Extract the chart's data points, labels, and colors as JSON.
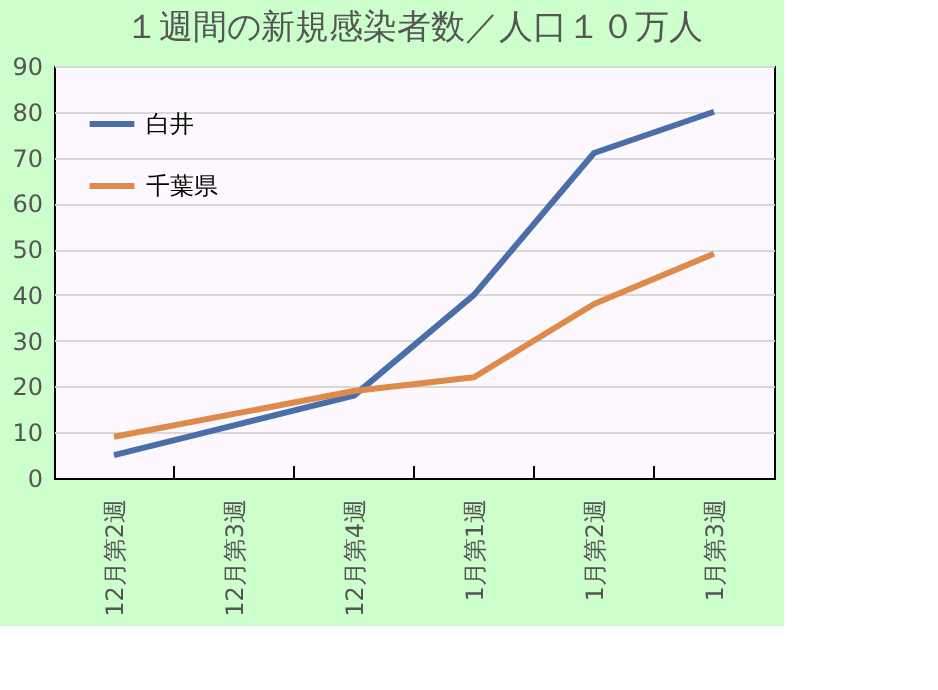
{
  "chart_data": {
    "type": "line",
    "title": "１週間の新規感染者数／人口１０万人",
    "categories": [
      "12月第2週",
      "12月第3週",
      "12月第4週",
      "1月第1週",
      "1月第2週",
      "1月第3週"
    ],
    "series": [
      {
        "name": "白井",
        "color": "#4a6fa8",
        "values": [
          5,
          11.5,
          18,
          40,
          71,
          80
        ]
      },
      {
        "name": "千葉県",
        "color": "#dd8a4a",
        "values": [
          9,
          14,
          19,
          22,
          38,
          49
        ]
      }
    ],
    "ylim": [
      0,
      90
    ],
    "yticks": [
      0,
      10,
      20,
      30,
      40,
      50,
      60,
      70,
      80,
      90
    ],
    "grid": "y",
    "legend": "top left",
    "line_style": "solid",
    "marker": "none"
  }
}
